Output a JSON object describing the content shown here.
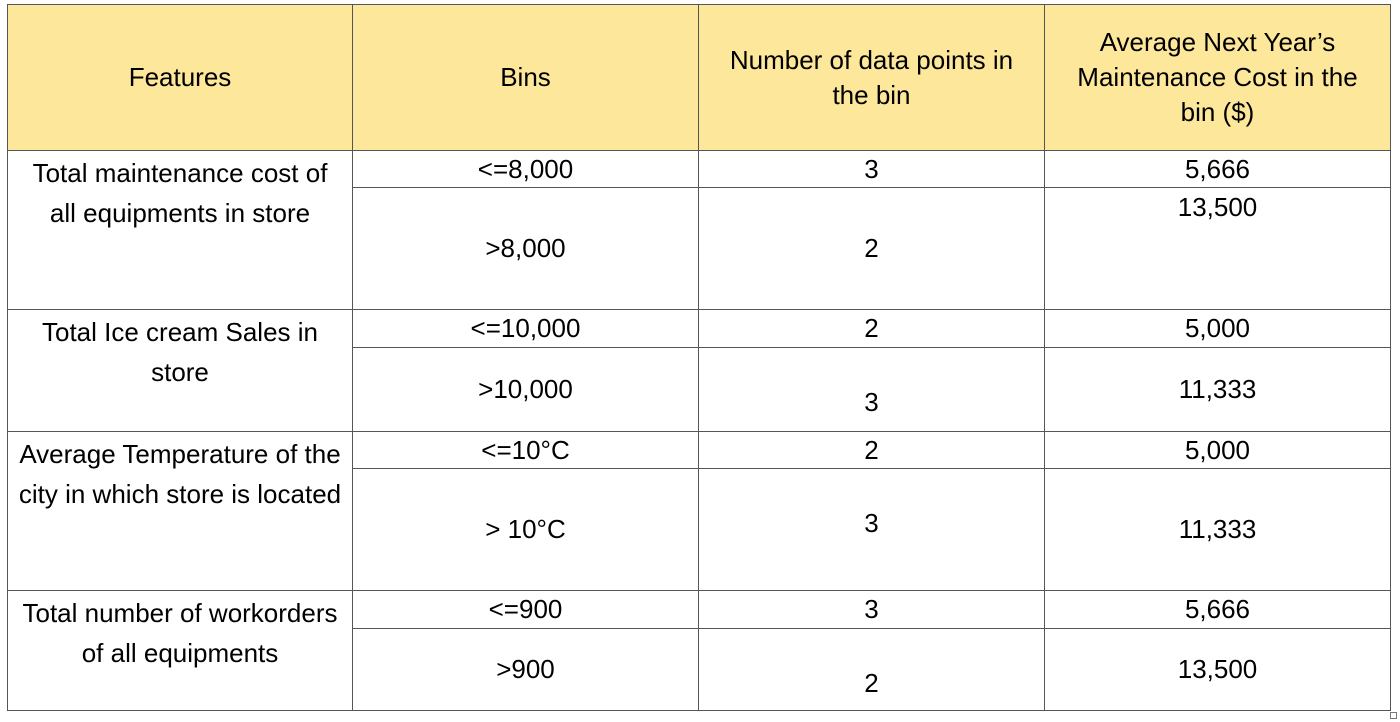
{
  "headers": {
    "features": "Features",
    "bins": "Bins",
    "count": "Number of data points in the bin",
    "avg": "Average Next Year’s Maintenance Cost in the bin ($)"
  },
  "groups": [
    {
      "feature": "Total maintenance cost of all equipments in store",
      "rows": [
        {
          "bin": "<=8,000",
          "count": "3",
          "avg": "5,666"
        },
        {
          "bin": ">8,000",
          "count": "2",
          "avg": "13,500"
        }
      ]
    },
    {
      "feature": "Total Ice cream Sales in store",
      "rows": [
        {
          "bin": "<=10,000",
          "count": "2",
          "avg": "5,000"
        },
        {
          "bin": ">10,000",
          "count": "3",
          "avg": "11,333"
        }
      ]
    },
    {
      "feature": "Average Temperature of the city in which store is located",
      "rows": [
        {
          "bin": "<=10°C",
          "count": "2",
          "avg": "5,000"
        },
        {
          "bin": "> 10°C",
          "count": "3",
          "avg": "11,333"
        }
      ]
    },
    {
      "feature": "Total number of workorders of all equipments",
      "rows": [
        {
          "bin": "<=900",
          "count": "3",
          "avg": "5,666"
        },
        {
          "bin": ">900",
          "count": "2",
          "avg": "13,500"
        }
      ]
    }
  ]
}
